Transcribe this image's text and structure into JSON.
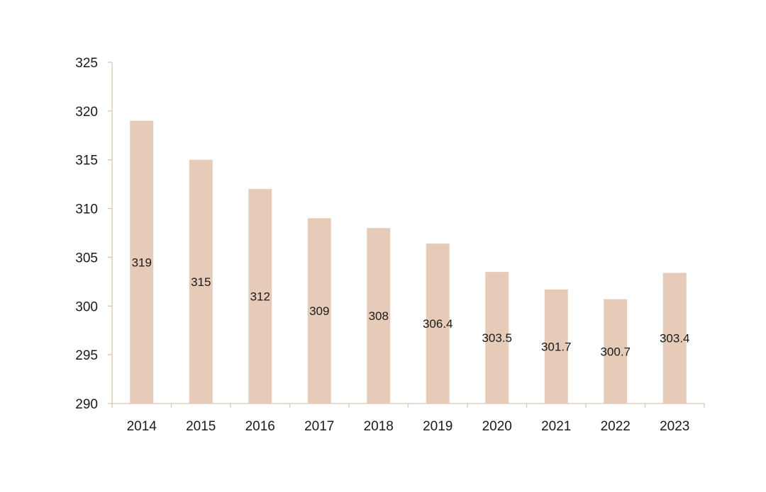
{
  "chart_data": {
    "type": "bar",
    "title": "",
    "xlabel": "",
    "ylabel": "",
    "categories": [
      "2014",
      "2015",
      "2016",
      "2017",
      "2018",
      "2019",
      "2020",
      "2021",
      "2022",
      "2023"
    ],
    "values": [
      319,
      315,
      312,
      309,
      308,
      306.4,
      303.5,
      301.7,
      300.7,
      303.4
    ],
    "data_labels": [
      "319",
      "315",
      "312",
      "309",
      "308",
      "306.4",
      "303.5",
      "301.7",
      "300.7",
      "303.4"
    ],
    "ylim": [
      290,
      325
    ],
    "yticks": [
      290,
      295,
      300,
      305,
      310,
      315,
      320,
      325
    ],
    "ytick_labels": [
      "290",
      "295",
      "300",
      "305",
      "310",
      "315",
      "320",
      "325"
    ],
    "grid": false,
    "legend": "none",
    "colors": {
      "bar": "#e6cbb9",
      "axis": "#d9c6b6",
      "text": "#1a1a1a"
    }
  }
}
